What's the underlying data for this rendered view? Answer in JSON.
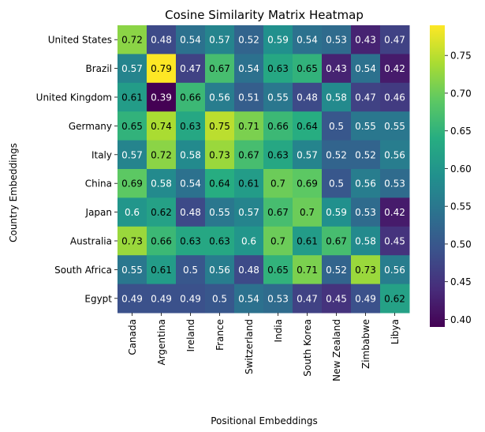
{
  "chart_data": {
    "type": "heatmap",
    "title": "Cosine Similarity Matrix Heatmap",
    "xlabel": "Positional Embeddings",
    "ylabel": "Country Embeddings",
    "x_categories": [
      "Canada",
      "Argentina",
      "Ireland",
      "France",
      "Switzerland",
      "India",
      "South Korea",
      "New Zealand",
      "Zimbabwe",
      "Libya"
    ],
    "y_categories": [
      "United States",
      "Brazil",
      "United Kingdom",
      "Germany",
      "Italy",
      "China",
      "Japan",
      "Australia",
      "South Africa",
      "Egypt"
    ],
    "values": [
      [
        0.72,
        0.48,
        0.54,
        0.57,
        0.52,
        0.59,
        0.54,
        0.53,
        0.43,
        0.47
      ],
      [
        0.57,
        0.79,
        0.47,
        0.67,
        0.54,
        0.63,
        0.65,
        0.43,
        0.54,
        0.42
      ],
      [
        0.61,
        0.39,
        0.66,
        0.56,
        0.51,
        0.55,
        0.48,
        0.58,
        0.47,
        0.46
      ],
      [
        0.65,
        0.74,
        0.63,
        0.75,
        0.71,
        0.66,
        0.64,
        0.5,
        0.55,
        0.55
      ],
      [
        0.57,
        0.72,
        0.58,
        0.73,
        0.67,
        0.63,
        0.57,
        0.52,
        0.52,
        0.56
      ],
      [
        0.69,
        0.58,
        0.54,
        0.64,
        0.61,
        0.7,
        0.69,
        0.5,
        0.56,
        0.53
      ],
      [
        0.6,
        0.62,
        0.48,
        0.55,
        0.57,
        0.67,
        0.7,
        0.59,
        0.53,
        0.42
      ],
      [
        0.73,
        0.66,
        0.63,
        0.63,
        0.6,
        0.7,
        0.61,
        0.67,
        0.58,
        0.45
      ],
      [
        0.55,
        0.61,
        0.5,
        0.56,
        0.48,
        0.65,
        0.71,
        0.52,
        0.73,
        0.56
      ],
      [
        0.49,
        0.49,
        0.49,
        0.5,
        0.54,
        0.53,
        0.47,
        0.45,
        0.49,
        0.62
      ]
    ],
    "value_labels": [
      [
        "0.72",
        "0.48",
        "0.54",
        "0.57",
        "0.52",
        "0.59",
        "0.54",
        "0.53",
        "0.43",
        "0.47"
      ],
      [
        "0.57",
        "0.79",
        "0.47",
        "0.67",
        "0.54",
        "0.63",
        "0.65",
        "0.43",
        "0.54",
        "0.42"
      ],
      [
        "0.61",
        "0.39",
        "0.66",
        "0.56",
        "0.51",
        "0.55",
        "0.48",
        "0.58",
        "0.47",
        "0.46"
      ],
      [
        "0.65",
        "0.74",
        "0.63",
        "0.75",
        "0.71",
        "0.66",
        "0.64",
        "0.5",
        "0.55",
        "0.55"
      ],
      [
        "0.57",
        "0.72",
        "0.58",
        "0.73",
        "0.67",
        "0.63",
        "0.57",
        "0.52",
        "0.52",
        "0.56"
      ],
      [
        "0.69",
        "0.58",
        "0.54",
        "0.64",
        "0.61",
        "0.7",
        "0.69",
        "0.5",
        "0.56",
        "0.53"
      ],
      [
        "0.6",
        "0.62",
        "0.48",
        "0.55",
        "0.57",
        "0.67",
        "0.7",
        "0.59",
        "0.53",
        "0.42"
      ],
      [
        "0.73",
        "0.66",
        "0.63",
        "0.63",
        "0.6",
        "0.7",
        "0.61",
        "0.67",
        "0.58",
        "0.45"
      ],
      [
        "0.55",
        "0.61",
        "0.5",
        "0.56",
        "0.48",
        "0.65",
        "0.71",
        "0.52",
        "0.73",
        "0.56"
      ],
      [
        "0.49",
        "0.49",
        "0.49",
        "0.5",
        "0.54",
        "0.53",
        "0.47",
        "0.45",
        "0.49",
        "0.62"
      ]
    ],
    "colormap": "viridis",
    "value_range": [
      0.39,
      0.79
    ],
    "colorbar_ticks": [
      0.4,
      0.45,
      0.5,
      0.55,
      0.6,
      0.65,
      0.7,
      0.75
    ],
    "colorbar_tick_labels": [
      "0.40",
      "0.45",
      "0.50",
      "0.55",
      "0.60",
      "0.65",
      "0.70",
      "0.75"
    ],
    "annotate": true
  }
}
